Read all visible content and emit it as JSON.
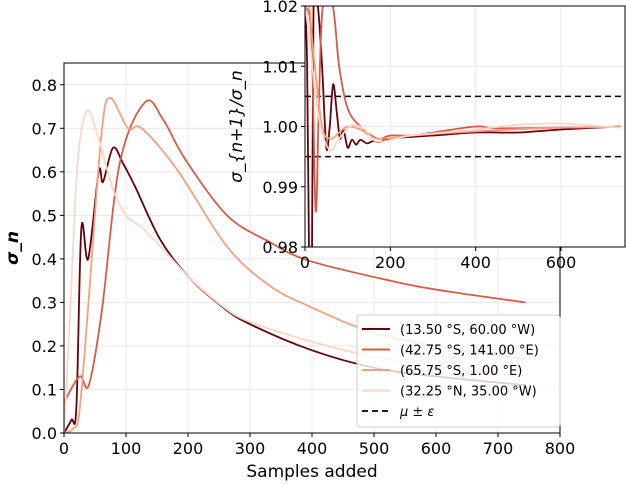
{
  "chart_data": [
    {
      "type": "line",
      "xlabel": "Samples added",
      "ylabel": "σ_n",
      "xlim": [
        0,
        800
      ],
      "ylim": [
        0,
        0.85
      ],
      "xticks": [
        "0",
        "100",
        "200",
        "300",
        "400",
        "500",
        "600",
        "700",
        "800"
      ],
      "yticks": [
        "0.0",
        "0.1",
        "0.2",
        "0.3",
        "0.4",
        "0.5",
        "0.6",
        "0.7",
        "0.8"
      ],
      "grid": true,
      "legend_position": "lower-right",
      "series": [
        {
          "name": "(13.50 °S, 60.00 °W)",
          "color": "#67000d",
          "x": [
            0,
            12,
            20,
            28,
            39,
            56,
            63,
            79,
            95,
            115,
            155,
            200,
            257,
            300,
            400,
            500,
            600,
            744
          ],
          "y": [
            0,
            0.03,
            0.06,
            0.47,
            0.4,
            0.6,
            0.577,
            0.655,
            0.62,
            0.565,
            0.445,
            0.36,
            0.288,
            0.25,
            0.19,
            0.15,
            0.13,
            0.11
          ]
        },
        {
          "name": "(42.75 °S, 141.00 °E)",
          "color": "#d75a47",
          "x": [
            0,
            25,
            40,
            61,
            90,
            131,
            160,
            195,
            263,
            330,
            397,
            542,
            620,
            744
          ],
          "y": [
            0.07,
            0.13,
            0.11,
            0.28,
            0.62,
            0.76,
            0.72,
            0.63,
            0.5,
            0.44,
            0.395,
            0.345,
            0.325,
            0.3
          ],
          "note_color": "#d75a47"
        },
        {
          "name": "(65.75 °S, 1.00 °E)",
          "color": "#f4a07e",
          "x": [
            0,
            15,
            25,
            39,
            60,
            74,
            103,
            125,
            182,
            262,
            330,
            397,
            500,
            620,
            744
          ],
          "y": [
            0,
            0.01,
            0.05,
            0.29,
            0.68,
            0.77,
            0.7,
            0.7,
            0.606,
            0.43,
            0.34,
            0.29,
            0.23,
            0.195,
            0.17
          ]
        },
        {
          "name": "(32.25 °N, 35.00 °W)",
          "color": "#fdd7c4",
          "x": [
            0,
            10,
            22,
            37,
            55,
            79,
            100,
            123,
            155,
            200,
            257,
            300,
            400,
            500,
            620,
            744
          ],
          "y": [
            0,
            0.28,
            0.62,
            0.74,
            0.68,
            0.56,
            0.5,
            0.475,
            0.43,
            0.36,
            0.29,
            0.255,
            0.21,
            0.175,
            0.15,
            0.13
          ]
        }
      ],
      "legend_extra": {
        "label": "μ ± ε",
        "style": "dashed",
        "color": "#000000"
      }
    },
    {
      "type": "line",
      "xlabel": "",
      "ylabel": "σ_{n+1}/σ_n",
      "xlim": [
        0,
        750
      ],
      "ylim": [
        0.98,
        1.02
      ],
      "xticks": [
        "0",
        "200",
        "400",
        "600"
      ],
      "yticks": [
        "0.98",
        "0.99",
        "1.00",
        "1.01",
        "1.02"
      ],
      "grid": true,
      "hlines": [
        1.005,
        0.995
      ],
      "series": [
        {
          "name": "(13.50 °S, 60.00 °W)",
          "color": "#67000d",
          "x": [
            0,
            5,
            10,
            15,
            20,
            30,
            40,
            50,
            58,
            66,
            75,
            82,
            90,
            100,
            110,
            120,
            130,
            145,
            160,
            175,
            200,
            300,
            400,
            500,
            600,
            740
          ],
          "y": [
            1.02,
            1.01,
            0.975,
            0.96,
            1.02,
            1.02,
            1.01,
            0.9965,
            1.0,
            1.007,
            1.002,
            0.998,
            0.9995,
            0.9965,
            0.9978,
            0.997,
            0.9978,
            0.9972,
            0.9976,
            0.9974,
            0.998,
            0.9985,
            0.999,
            0.999,
            0.9995,
            1.0
          ]
        },
        {
          "name": "(42.75 °S, 141.00 °E)",
          "color": "#d75a47",
          "x": [
            0,
            15,
            25,
            33,
            42,
            65,
            80,
            100,
            130,
            170,
            200,
            250,
            300,
            400,
            450,
            600,
            740
          ],
          "y": [
            1.02,
            1.015,
            0.986,
            1.005,
            1.02,
            1.02,
            1.01,
            1.003,
            1.0,
            0.998,
            0.9985,
            0.9985,
            0.999,
            1.0,
            0.9997,
            0.9998,
            1.0
          ]
        },
        {
          "name": "(65.75 °S, 1.00 °E)",
          "color": "#f4a07e",
          "x": [
            0,
            10,
            20,
            40,
            60,
            80,
            100,
            130,
            170,
            250,
            400,
            600,
            740
          ],
          "y": [
            1.02,
            1.02,
            1.012,
            1.0,
            0.998,
            0.999,
            1.0,
            0.9995,
            0.998,
            0.9985,
            0.9992,
            0.9998,
            0.9999
          ]
        },
        {
          "name": "(32.25 °N, 35.00 °W)",
          "color": "#fdd7c4",
          "x": [
            0,
            10,
            25,
            40,
            60,
            80,
            110,
            140,
            170,
            250,
            400,
            500,
            600,
            740
          ],
          "y": [
            1.02,
            1.015,
            1.005,
            0.999,
            0.996,
            0.998,
            1.0002,
            0.9995,
            0.9975,
            0.9985,
            0.9995,
            1.0003,
            1.0005,
            0.9998
          ]
        }
      ]
    }
  ]
}
